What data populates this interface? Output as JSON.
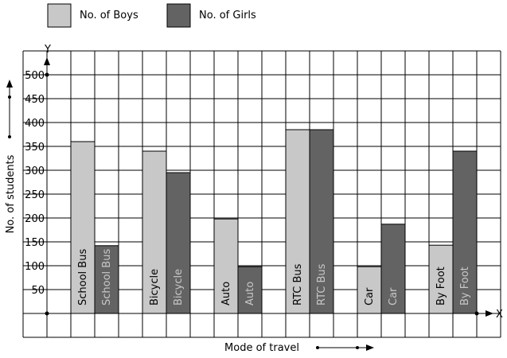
{
  "chart_data": {
    "type": "bar",
    "categories": [
      "School Bus",
      "Bicycle",
      "Auto",
      "RTC Bus",
      "Car",
      "By Foot"
    ],
    "series": [
      {
        "name": "No. of Boys",
        "color": "#c8c8c8",
        "values": [
          360,
          340,
          198,
          385,
          98,
          143
        ]
      },
      {
        "name": "No. of Girls",
        "color": "#636363",
        "values": [
          142,
          295,
          98,
          385,
          187,
          340
        ]
      }
    ],
    "xlabel": "Mode of travel",
    "ylabel": "No. of students",
    "x_axis_letter": "X",
    "y_axis_letter": "Y",
    "yticks": [
      50,
      100,
      150,
      200,
      250,
      300,
      350,
      400,
      450,
      500
    ],
    "ytick_labels": [
      "50",
      "100",
      "150",
      "200",
      "250",
      "300",
      "350",
      "400",
      "450",
      "500"
    ],
    "ylim": [
      -50,
      550
    ],
    "grid": true,
    "legend_position": "top-left"
  }
}
